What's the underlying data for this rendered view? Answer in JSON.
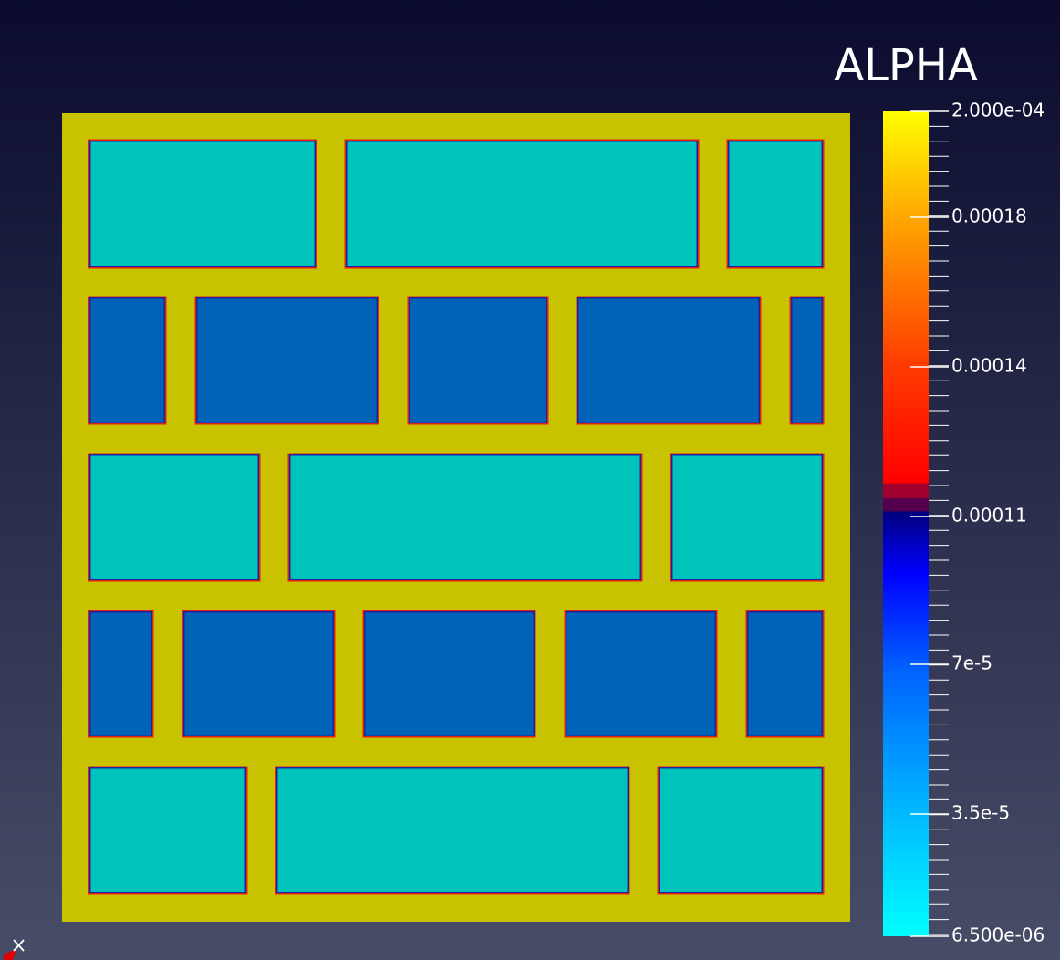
{
  "legend": {
    "title": "ALPHA",
    "labels": [
      "2.000e-04",
      "0.00018",
      "0.00014",
      "0.00011",
      "7e-5",
      "3.5e-5",
      "6.500e-06"
    ]
  }
}
